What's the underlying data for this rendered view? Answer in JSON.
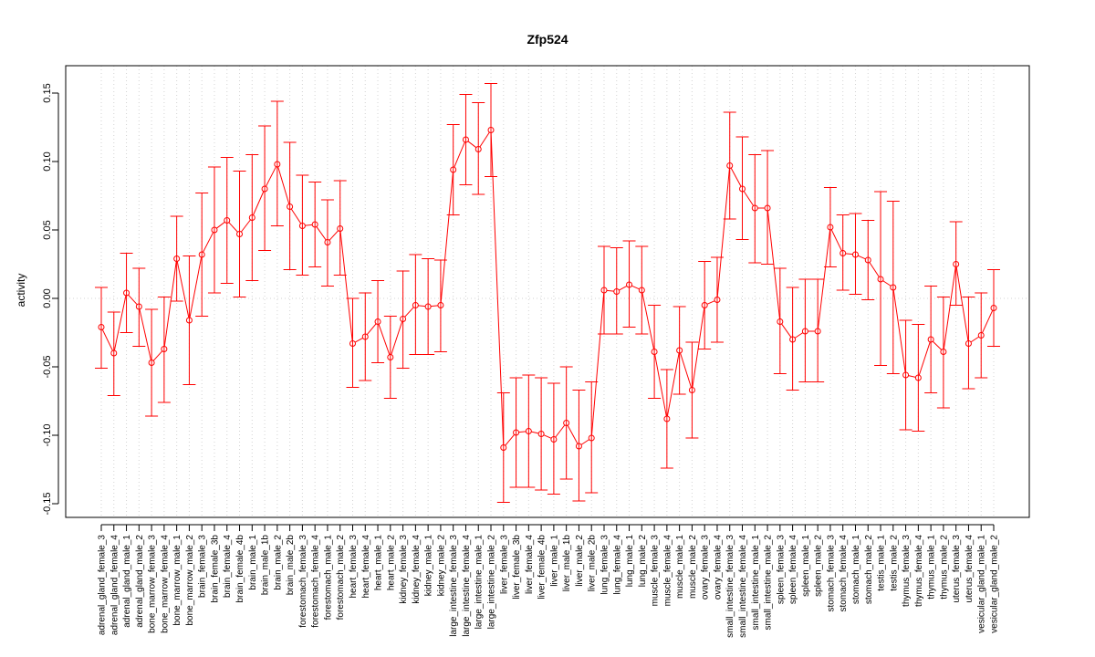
{
  "chart_data": {
    "type": "line",
    "title": "Zfp524",
    "xlabel": "",
    "ylabel": "activity",
    "ylim": [
      -0.16,
      0.17
    ],
    "yticks": [
      -0.15,
      -0.1,
      -0.05,
      0.0,
      0.05,
      0.1,
      0.15
    ],
    "ytick_labels": [
      "-0.15",
      "-0.10",
      "-0.05",
      "0.00",
      "0.05",
      "0.10",
      "0.15"
    ],
    "grid": true,
    "reference_line": 0,
    "color": "#ff0000",
    "categories": [
      "adrenal_gland_female_3",
      "adrenal_gland_female_4",
      "adrenal_gland_male_1",
      "adrenal_gland_male_2",
      "bone_marrow_female_3",
      "bone_marrow_female_4",
      "bone_marrow_male_1",
      "bone_marrow_male_2",
      "brain_female_3",
      "brain_female_3b",
      "brain_female_4",
      "brain_female_4b",
      "brain_male_1",
      "brain_male_1b",
      "brain_male_2",
      "brain_male_2b",
      "forestomach_female_3",
      "forestomach_female_4",
      "forestomach_male_1",
      "forestomach_male_2",
      "heart_female_3",
      "heart_female_4",
      "heart_male_1",
      "heart_male_2",
      "kidney_female_3",
      "kidney_female_4",
      "kidney_male_1",
      "kidney_male_2",
      "large_intestine_female_3",
      "large_intestine_female_4",
      "large_intestine_male_1",
      "large_intestine_male_2",
      "liver_female_3",
      "liver_female_3b",
      "liver_female_4",
      "liver_female_4b",
      "liver_male_1",
      "liver_male_1b",
      "liver_male_2",
      "liver_male_2b",
      "lung_female_3",
      "lung_female_4",
      "lung_male_1",
      "lung_male_2",
      "muscle_female_3",
      "muscle_female_4",
      "muscle_male_1",
      "muscle_male_2",
      "ovary_female_3",
      "ovary_female_4",
      "small_intestine_female_3",
      "small_intestine_female_4",
      "small_intestine_male_1",
      "small_intestine_male_2",
      "spleen_female_3",
      "spleen_female_4",
      "spleen_male_1",
      "spleen_male_2",
      "stomach_female_3",
      "stomach_female_4",
      "stomach_male_1",
      "stomach_male_2",
      "testis_male_1",
      "testis_male_2",
      "thymus_female_3",
      "thymus_female_4",
      "thymus_male_1",
      "thymus_male_2",
      "uterus_female_3",
      "uterus_female_4",
      "vesicular_gland_male_1",
      "vesicular_gland_male_2"
    ],
    "series": [
      {
        "name": "activity",
        "values": [
          -0.021,
          -0.04,
          0.004,
          -0.006,
          -0.047,
          -0.037,
          0.029,
          -0.016,
          0.032,
          0.05,
          0.057,
          0.047,
          0.059,
          0.08,
          0.098,
          0.067,
          0.053,
          0.054,
          0.041,
          0.051,
          -0.033,
          -0.028,
          -0.017,
          -0.043,
          -0.015,
          -0.005,
          -0.006,
          -0.005,
          0.094,
          0.116,
          0.109,
          0.123,
          -0.109,
          -0.098,
          -0.097,
          -0.099,
          -0.103,
          -0.091,
          -0.108,
          -0.102,
          0.006,
          0.005,
          0.01,
          0.006,
          -0.039,
          -0.088,
          -0.038,
          -0.067,
          -0.005,
          -0.001,
          0.097,
          0.08,
          0.066,
          0.066,
          -0.017,
          -0.03,
          -0.024,
          -0.024,
          0.052,
          0.033,
          0.032,
          0.028,
          0.014,
          0.008,
          -0.056,
          -0.058,
          -0.03,
          -0.039,
          0.025,
          -0.033,
          -0.027,
          -0.007
        ],
        "lower": [
          -0.051,
          -0.071,
          -0.025,
          -0.035,
          -0.086,
          -0.076,
          -0.002,
          -0.063,
          -0.013,
          0.004,
          0.011,
          0.001,
          0.013,
          0.035,
          0.053,
          0.021,
          0.017,
          0.023,
          0.009,
          0.017,
          -0.065,
          -0.06,
          -0.047,
          -0.073,
          -0.051,
          -0.041,
          -0.041,
          -0.039,
          0.061,
          0.083,
          0.076,
          0.089,
          -0.149,
          -0.138,
          -0.138,
          -0.14,
          -0.143,
          -0.132,
          -0.148,
          -0.142,
          -0.026,
          -0.026,
          -0.021,
          -0.026,
          -0.073,
          -0.124,
          -0.07,
          -0.102,
          -0.037,
          -0.032,
          0.058,
          0.043,
          0.026,
          0.025,
          -0.055,
          -0.067,
          -0.061,
          -0.061,
          0.023,
          0.006,
          0.003,
          -0.001,
          -0.049,
          -0.055,
          -0.096,
          -0.097,
          -0.069,
          -0.08,
          -0.005,
          -0.066,
          -0.058,
          -0.035
        ],
        "upper": [
          0.008,
          -0.01,
          0.033,
          0.022,
          -0.008,
          0.001,
          0.06,
          0.031,
          0.077,
          0.096,
          0.103,
          0.093,
          0.105,
          0.126,
          0.144,
          0.114,
          0.09,
          0.085,
          0.072,
          0.086,
          0.0,
          0.004,
          0.013,
          -0.013,
          0.02,
          0.032,
          0.029,
          0.028,
          0.127,
          0.149,
          0.143,
          0.157,
          -0.069,
          -0.058,
          -0.056,
          -0.058,
          -0.062,
          -0.05,
          -0.067,
          -0.061,
          0.038,
          0.037,
          0.042,
          0.038,
          -0.005,
          -0.052,
          -0.006,
          -0.032,
          0.027,
          0.03,
          0.136,
          0.118,
          0.105,
          0.108,
          0.022,
          0.008,
          0.014,
          0.014,
          0.081,
          0.061,
          0.062,
          0.057,
          0.078,
          0.071,
          -0.016,
          -0.019,
          0.009,
          0.001,
          0.056,
          0.001,
          0.004,
          0.021
        ]
      }
    ]
  }
}
